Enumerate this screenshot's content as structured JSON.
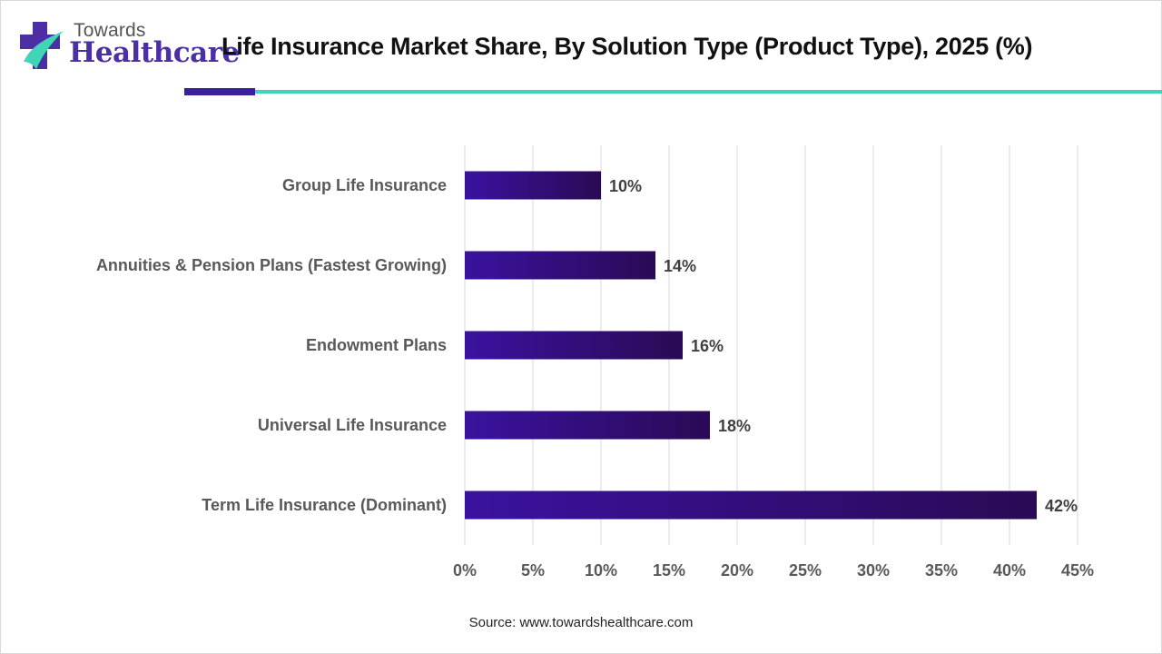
{
  "header": {
    "logo_top": "Towards",
    "logo_main": "Healthcare",
    "title": "Life Insurance Market Share, By Solution Type (Product Type), 2025 (%)"
  },
  "footer": {
    "source": "Source: www.towardshealthcare.com"
  },
  "colors": {
    "bar_start": "#3a12a0",
    "bar_end": "#2a0a55",
    "accent_dark": "#3a1f9e",
    "accent_teal": "#3fd5b6"
  },
  "chart_data": {
    "type": "bar",
    "orientation": "horizontal",
    "categories": [
      "Group Life Insurance",
      "Annuities & Pension Plans (Fastest Growing)",
      "Endowment Plans",
      "Universal Life Insurance",
      "Term Life Insurance (Dominant)"
    ],
    "values": [
      10,
      14,
      16,
      18,
      42
    ],
    "data_labels": [
      "10%",
      "14%",
      "16%",
      "18%",
      "42%"
    ],
    "xlim": [
      0,
      45
    ],
    "x_ticks": [
      0,
      5,
      10,
      15,
      20,
      25,
      30,
      35,
      40,
      45
    ],
    "x_tick_labels": [
      "0%",
      "5%",
      "10%",
      "15%",
      "20%",
      "25%",
      "30%",
      "35%",
      "40%",
      "45%"
    ],
    "grid": true,
    "legend": "none"
  }
}
